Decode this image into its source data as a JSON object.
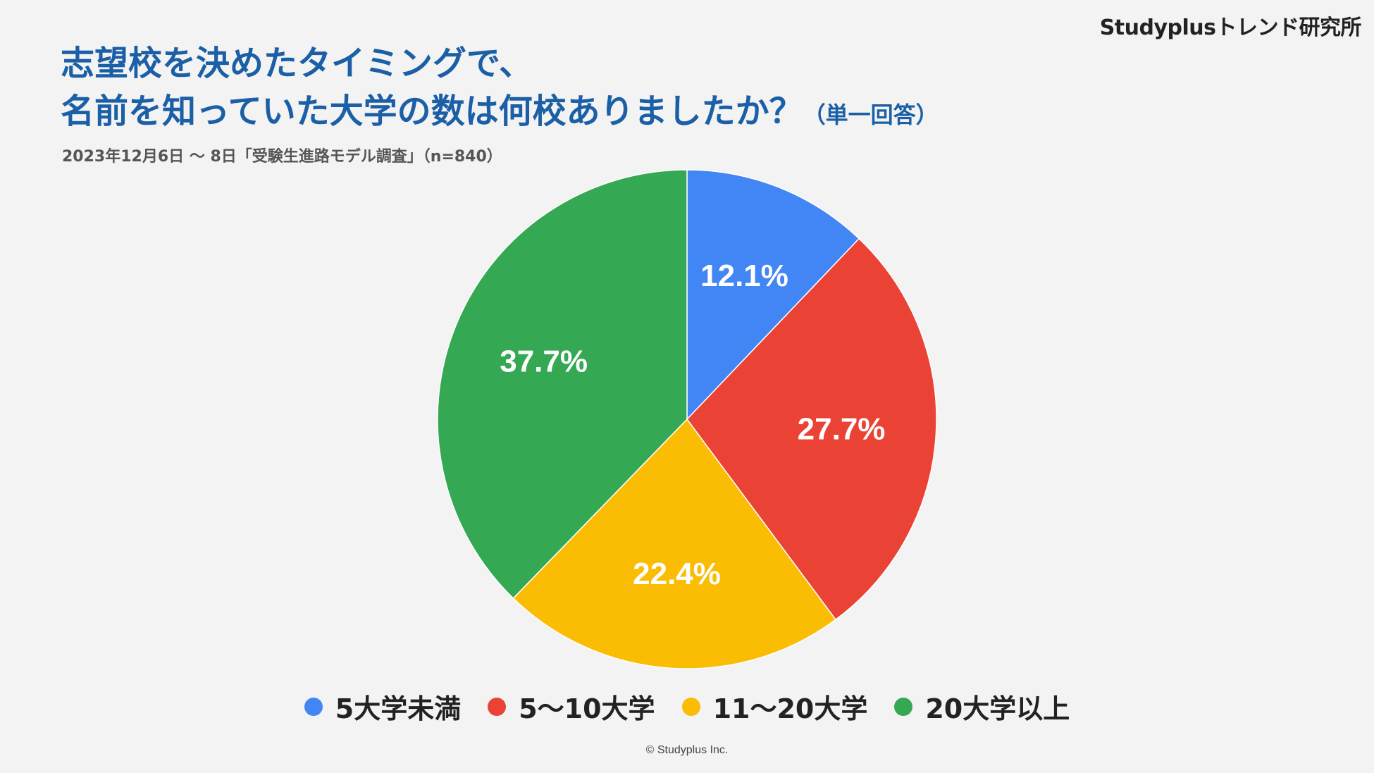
{
  "brand": "Studyplusトレンド研究所",
  "title": {
    "line1": "志望校を決めたタイミングで、",
    "line2": "名前を知っていた大学の数は何校ありましたか？",
    "note": "（単一回答）"
  },
  "subtitle": "2023年12月6日 ～ 8日「受験生進路モデル調査」（n=840）",
  "copyright": "© Studyplus Inc.",
  "chart_data": {
    "type": "pie",
    "categories": [
      "5大学未満",
      "5～10大学",
      "11～20大学",
      "20大学以上"
    ],
    "values": [
      12.1,
      27.7,
      22.4,
      37.7
    ],
    "labels": [
      "12.1%",
      "27.7%",
      "22.4%",
      "37.7%"
    ],
    "colors": [
      "#4285f4",
      "#ea4335",
      "#fbbc04",
      "#34a853"
    ],
    "start": "12 o'clock",
    "direction": "clockwise",
    "legend_position": "bottom"
  }
}
